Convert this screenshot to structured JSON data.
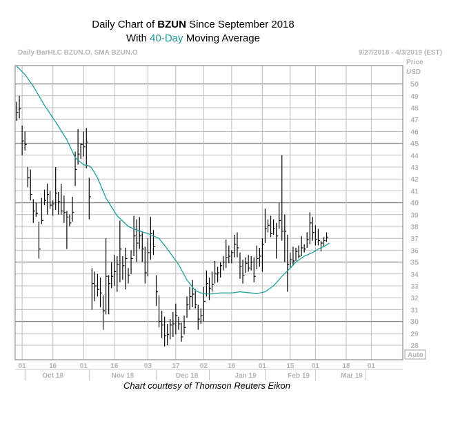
{
  "title": {
    "line1_pre": "Daily Chart of ",
    "line1_ticker": "BZUN",
    "line1_post": " Since September 2018",
    "line2_pre": "With ",
    "line2_ma": "40-Day",
    "line2_post": " Moving Average"
  },
  "header": {
    "left": "Daily BarHLC BZUN.O, SMA BZUN.O",
    "right": "9/27/2018 - 4/3/2019 (EST)",
    "price": "Price",
    "currency": "USD",
    "auto": "Auto"
  },
  "caption": "Chart courtesy of Thomson Reuters Eikon",
  "colors": {
    "ma_line": "#1e9e96",
    "bars": "#000000",
    "grid": "#a0a0a0",
    "axis_text": "#b4b4b4"
  },
  "chart_data": {
    "type": "ohlc",
    "title": "Daily Chart of BZUN Since September 2018 With 40-Day Moving Average",
    "ylabel": "Price USD",
    "ylim": [
      27.3,
      51.8
    ],
    "yticks": [
      28,
      29,
      30,
      31,
      32,
      33,
      34,
      35,
      36,
      37,
      38,
      39,
      40,
      41,
      42,
      43,
      44,
      45,
      46,
      47,
      48,
      49,
      50
    ],
    "ytick_bold": [
      30,
      35,
      40,
      45,
      50
    ],
    "date_range": "9/27/2018 - 4/3/2019 (EST)",
    "day_ticks": [
      {
        "label": "01",
        "i": 2
      },
      {
        "label": "16",
        "i": 13
      },
      {
        "label": "01",
        "i": 24
      },
      {
        "label": "16",
        "i": 35
      },
      {
        "label": "03",
        "i": 47
      },
      {
        "label": "17",
        "i": 57
      },
      {
        "label": "02",
        "i": 67
      },
      {
        "label": "16",
        "i": 77
      },
      {
        "label": "01",
        "i": 88
      },
      {
        "label": "15",
        "i": 98
      },
      {
        "label": "01",
        "i": 107
      },
      {
        "label": "18",
        "i": 118
      },
      {
        "label": "01",
        "i": 127
      }
    ],
    "month_labels": [
      {
        "label": "Oct 18",
        "i": 13
      },
      {
        "label": "Nov 18",
        "i": 38
      },
      {
        "label": "Dec 18",
        "i": 61
      },
      {
        "label": "Jan 19",
        "i": 82
      },
      {
        "label": "Feb 19",
        "i": 101
      },
      {
        "label": "Mar 19",
        "i": 120
      }
    ],
    "bars": [
      {
        "h": 48.5,
        "l": 46.9,
        "c": 47.6
      },
      {
        "h": 49.0,
        "l": 47.1,
        "c": 47.9
      },
      {
        "h": 46.5,
        "l": 44.0,
        "c": 45.2
      },
      {
        "h": 46.0,
        "l": 44.4,
        "c": 44.9
      },
      {
        "h": 43.0,
        "l": 41.3,
        "c": 42.1
      },
      {
        "h": 42.8,
        "l": 40.2,
        "c": 40.7
      },
      {
        "h": 40.3,
        "l": 38.3,
        "c": 39.3
      },
      {
        "h": 40.0,
        "l": 38.8,
        "c": 39.1
      },
      {
        "h": 38.4,
        "l": 35.3,
        "c": 36.1
      },
      {
        "h": 40.4,
        "l": 38.2,
        "c": 38.5
      },
      {
        "h": 41.1,
        "l": 39.8,
        "c": 40.2
      },
      {
        "h": 41.6,
        "l": 39.0,
        "c": 40.7
      },
      {
        "h": 41.0,
        "l": 39.5,
        "c": 39.8
      },
      {
        "h": 40.2,
        "l": 38.9,
        "c": 39.9
      },
      {
        "h": 43.0,
        "l": 39.4,
        "c": 40.8
      },
      {
        "h": 40.9,
        "l": 39.0,
        "c": 40.1
      },
      {
        "h": 41.6,
        "l": 39.0,
        "c": 39.3
      },
      {
        "h": 40.6,
        "l": 38.3,
        "c": 39.2
      },
      {
        "h": 39.3,
        "l": 36.1,
        "c": 38.8
      },
      {
        "h": 39.0,
        "l": 38.0,
        "c": 38.3
      },
      {
        "h": 40.5,
        "l": 38.4,
        "c": 39.2
      },
      {
        "h": 44.3,
        "l": 41.4,
        "c": 42.8
      },
      {
        "h": 46.2,
        "l": 43.2,
        "c": 44.1
      },
      {
        "h": 45.0,
        "l": 43.7,
        "c": 44.9
      },
      {
        "h": 46.0,
        "l": 43.9,
        "c": 44.7
      },
      {
        "h": 46.3,
        "l": 42.9,
        "c": 45.1
      },
      {
        "h": 42.1,
        "l": 38.6,
        "c": 40.5
      },
      {
        "h": 34.5,
        "l": 31.0,
        "c": 33.2
      },
      {
        "h": 34.2,
        "l": 31.7,
        "c": 33.0
      },
      {
        "h": 34.0,
        "l": 32.1,
        "c": 32.7
      },
      {
        "h": 33.7,
        "l": 31.2,
        "c": 32.4
      },
      {
        "h": 32.2,
        "l": 29.3,
        "c": 30.9
      },
      {
        "h": 37.0,
        "l": 30.6,
        "c": 33.8
      },
      {
        "h": 33.9,
        "l": 30.6,
        "c": 33.2
      },
      {
        "h": 35.0,
        "l": 32.8,
        "c": 33.8
      },
      {
        "h": 35.6,
        "l": 33.0,
        "c": 34.2
      },
      {
        "h": 35.5,
        "l": 32.5,
        "c": 34.8
      },
      {
        "h": 38.5,
        "l": 33.3,
        "c": 36.1
      },
      {
        "h": 35.5,
        "l": 33.5,
        "c": 34.7
      },
      {
        "h": 36.2,
        "l": 32.7,
        "c": 35.3
      },
      {
        "h": 34.5,
        "l": 33.2,
        "c": 33.9
      },
      {
        "h": 36.0,
        "l": 34.0,
        "c": 35.3
      },
      {
        "h": 38.9,
        "l": 35.5,
        "c": 37.2
      },
      {
        "h": 38.6,
        "l": 35.0,
        "c": 36.6
      },
      {
        "h": 38.8,
        "l": 36.1,
        "c": 37.2
      },
      {
        "h": 37.5,
        "l": 35.0,
        "c": 36.1
      },
      {
        "h": 36.3,
        "l": 33.2,
        "c": 34.1
      },
      {
        "h": 37.0,
        "l": 33.8,
        "c": 35.8
      },
      {
        "h": 38.8,
        "l": 35.2,
        "c": 37.4
      },
      {
        "h": 37.7,
        "l": 35.6,
        "c": 36.3
      },
      {
        "h": 33.9,
        "l": 31.3,
        "c": 32.5
      },
      {
        "h": 32.2,
        "l": 29.5,
        "c": 30.0
      },
      {
        "h": 30.9,
        "l": 28.6,
        "c": 29.7
      },
      {
        "h": 30.4,
        "l": 27.9,
        "c": 28.8
      },
      {
        "h": 29.8,
        "l": 28.0,
        "c": 28.9
      },
      {
        "h": 30.2,
        "l": 28.5,
        "c": 29.7
      },
      {
        "h": 30.8,
        "l": 28.7,
        "c": 29.8
      },
      {
        "h": 31.5,
        "l": 28.9,
        "c": 30.5
      },
      {
        "h": 30.4,
        "l": 29.3,
        "c": 29.8
      },
      {
        "h": 29.9,
        "l": 28.3,
        "c": 28.7
      },
      {
        "h": 30.5,
        "l": 28.9,
        "c": 29.5
      },
      {
        "h": 32.1,
        "l": 30.3,
        "c": 31.4
      },
      {
        "h": 32.9,
        "l": 31.0,
        "c": 32.1
      },
      {
        "h": 33.5,
        "l": 31.2,
        "c": 32.3
      },
      {
        "h": 32.7,
        "l": 31.1,
        "c": 31.4
      },
      {
        "h": 31.4,
        "l": 29.3,
        "c": 30.2
      },
      {
        "h": 31.1,
        "l": 29.8,
        "c": 30.5
      },
      {
        "h": 32.9,
        "l": 30.0,
        "c": 31.7
      },
      {
        "h": 34.3,
        "l": 32.1,
        "c": 33.2
      },
      {
        "h": 33.7,
        "l": 31.8,
        "c": 32.8
      },
      {
        "h": 34.2,
        "l": 32.5,
        "c": 33.1
      },
      {
        "h": 35.1,
        "l": 33.2,
        "c": 34.0
      },
      {
        "h": 34.6,
        "l": 33.3,
        "c": 34.1
      },
      {
        "h": 35.0,
        "l": 33.7,
        "c": 34.7
      },
      {
        "h": 35.5,
        "l": 34.3,
        "c": 35.0
      },
      {
        "h": 36.9,
        "l": 34.5,
        "c": 35.4
      },
      {
        "h": 36.4,
        "l": 34.9,
        "c": 35.5
      },
      {
        "h": 36.0,
        "l": 34.9,
        "c": 35.8
      },
      {
        "h": 37.3,
        "l": 35.4,
        "c": 36.5
      },
      {
        "h": 37.5,
        "l": 35.4,
        "c": 36.2
      },
      {
        "h": 35.8,
        "l": 33.6,
        "c": 34.6
      },
      {
        "h": 35.2,
        "l": 33.2,
        "c": 33.9
      },
      {
        "h": 35.4,
        "l": 34.1,
        "c": 34.9
      },
      {
        "h": 35.6,
        "l": 34.2,
        "c": 34.5
      },
      {
        "h": 35.5,
        "l": 34.3,
        "c": 35.0
      },
      {
        "h": 35.4,
        "l": 33.3,
        "c": 33.8
      },
      {
        "h": 36.4,
        "l": 34.4,
        "c": 35.3
      },
      {
        "h": 36.2,
        "l": 34.6,
        "c": 35.5
      },
      {
        "h": 37.0,
        "l": 34.2,
        "c": 36.5
      },
      {
        "h": 39.5,
        "l": 36.6,
        "c": 37.8
      },
      {
        "h": 38.6,
        "l": 37.5,
        "c": 38.1
      },
      {
        "h": 38.9,
        "l": 37.1,
        "c": 37.4
      },
      {
        "h": 38.6,
        "l": 37.3,
        "c": 37.8
      },
      {
        "h": 38.3,
        "l": 35.3,
        "c": 37.2
      },
      {
        "h": 40.0,
        "l": 37.8,
        "c": 38.5
      },
      {
        "h": 44.0,
        "l": 36.8,
        "c": 37.6
      },
      {
        "h": 39.0,
        "l": 35.0,
        "c": 37.6
      },
      {
        "h": 37.3,
        "l": 32.5,
        "c": 34.8
      },
      {
        "h": 35.8,
        "l": 34.5,
        "c": 35.2
      },
      {
        "h": 36.3,
        "l": 34.7,
        "c": 35.1
      },
      {
        "h": 36.2,
        "l": 35.1,
        "c": 35.9
      },
      {
        "h": 36.4,
        "l": 35.3,
        "c": 35.5
      },
      {
        "h": 37.2,
        "l": 35.5,
        "c": 36.2
      },
      {
        "h": 36.5,
        "l": 35.8,
        "c": 36.1
      },
      {
        "h": 37.5,
        "l": 36.2,
        "c": 36.9
      },
      {
        "h": 39.2,
        "l": 36.5,
        "c": 38.3
      },
      {
        "h": 38.8,
        "l": 36.8,
        "c": 37.5
      },
      {
        "h": 38.1,
        "l": 36.4,
        "c": 36.9
      },
      {
        "h": 37.8,
        "l": 36.4,
        "c": 36.8
      },
      {
        "h": 36.8,
        "l": 35.9,
        "c": 36.6
      },
      {
        "h": 37.1,
        "l": 36.3,
        "c": 36.8
      },
      {
        "h": 37.5,
        "l": 36.7,
        "c": 37.1
      }
    ],
    "ma_points": [
      [
        0,
        51.5
      ],
      [
        3,
        50.8
      ],
      [
        6,
        49.8
      ],
      [
        10,
        48.2
      ],
      [
        14,
        46.8
      ],
      [
        18,
        45.3
      ],
      [
        21,
        43.8
      ],
      [
        24,
        43.2
      ],
      [
        26,
        43.1
      ],
      [
        27,
        42.9
      ],
      [
        29,
        42.1
      ],
      [
        32,
        40.4
      ],
      [
        36,
        38.9
      ],
      [
        40,
        38.0
      ],
      [
        43,
        37.7
      ],
      [
        47,
        37.4
      ],
      [
        51,
        37.0
      ],
      [
        54,
        36.1
      ],
      [
        58,
        34.8
      ],
      [
        61,
        33.5
      ],
      [
        64,
        32.6
      ],
      [
        66,
        32.4
      ],
      [
        69,
        32.3
      ],
      [
        73,
        32.4
      ],
      [
        77,
        32.4
      ],
      [
        80,
        32.5
      ],
      [
        84,
        32.4
      ],
      [
        86,
        32.35
      ],
      [
        89,
        32.5
      ],
      [
        92,
        33.0
      ],
      [
        95,
        33.8
      ],
      [
        98,
        34.5
      ],
      [
        100,
        35.0
      ],
      [
        103,
        35.5
      ],
      [
        106,
        35.8
      ],
      [
        108,
        36.1
      ],
      [
        110,
        36.3
      ],
      [
        112,
        36.6
      ]
    ]
  }
}
